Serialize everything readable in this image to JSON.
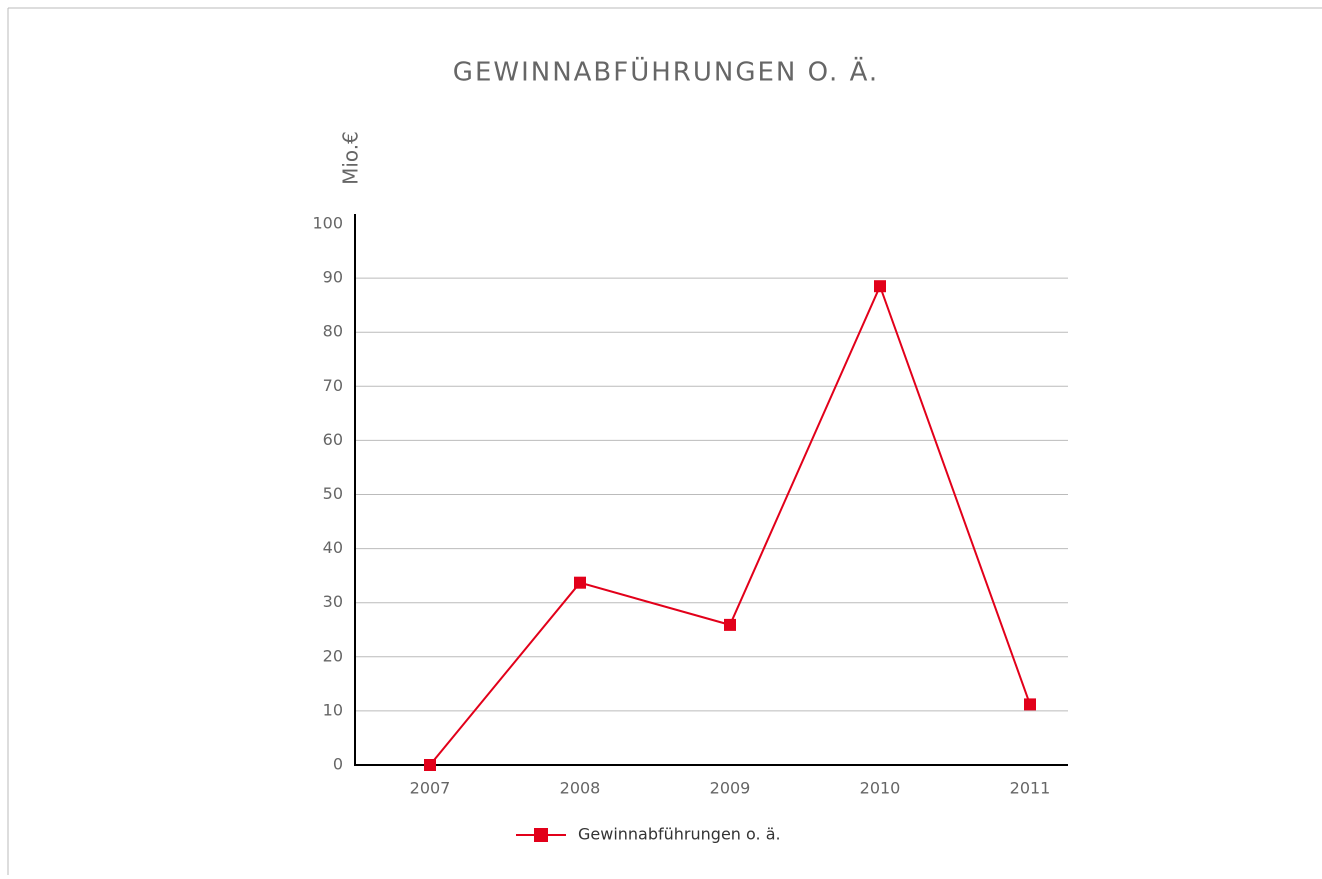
{
  "chart_data": {
    "type": "line",
    "title": "GEWINNABFÜHRUNGEN O. Ä.",
    "y_label": "Mio.€",
    "categories": [
      "2007",
      "2008",
      "2009",
      "2010",
      "2011"
    ],
    "series": [
      {
        "name": "Gewinnabführungen o. ä.",
        "color": "#e2001a",
        "values": [
          0,
          33.7,
          25.9,
          88.5,
          11.2
        ]
      }
    ],
    "ylim": [
      0,
      100
    ],
    "yticks": [
      0,
      10,
      20,
      30,
      40,
      50,
      60,
      70,
      80,
      90,
      100
    ],
    "grid": true
  }
}
